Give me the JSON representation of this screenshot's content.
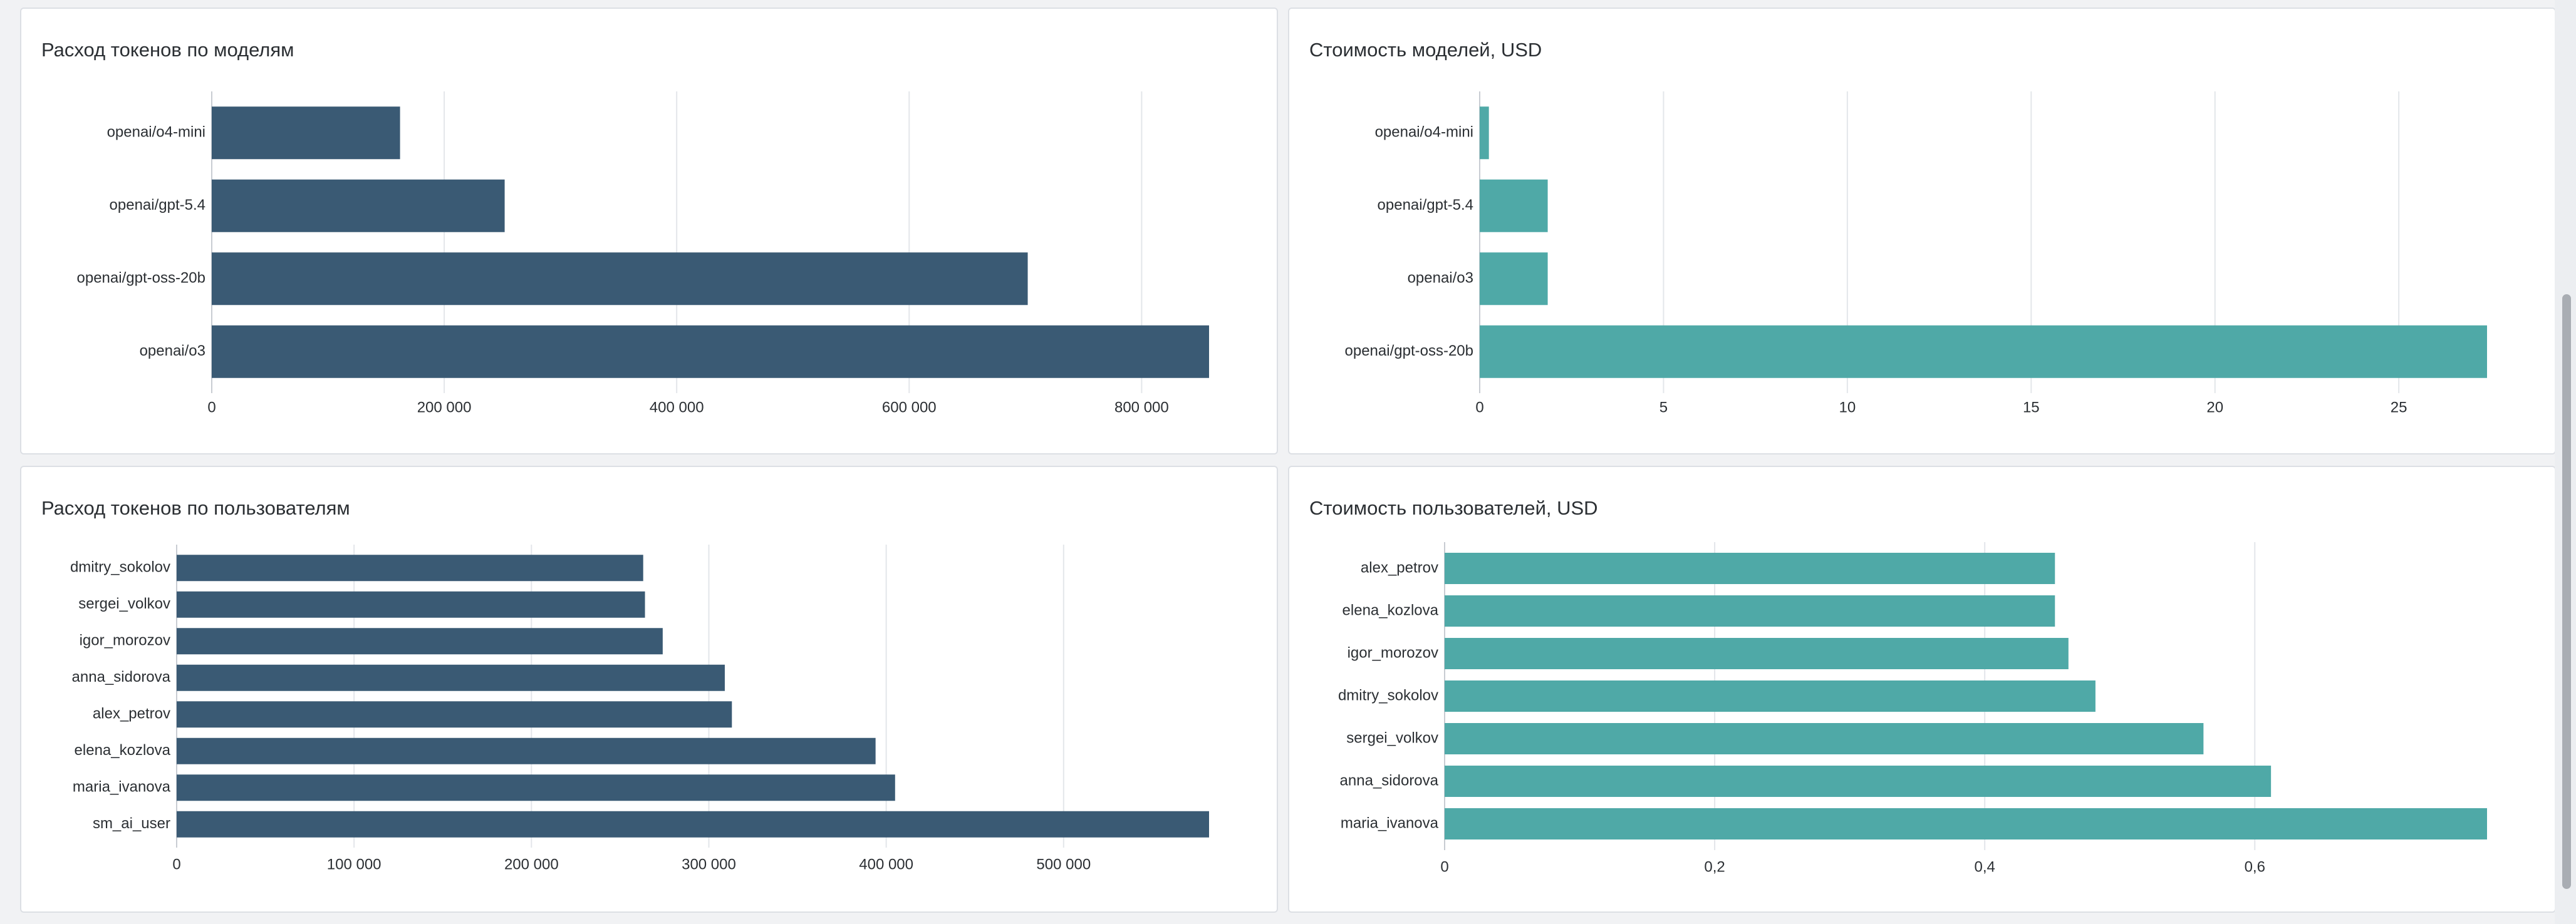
{
  "chart_data": [
    {
      "id": "tokens-by-model",
      "type": "bar",
      "orientation": "horizontal",
      "title": "Расход токенов по моделям",
      "categories": [
        "openai/o4-mini",
        "openai/gpt-5.4",
        "openai/gpt-oss-20b",
        "openai/o3"
      ],
      "values": [
        162000,
        252000,
        702000,
        858000
      ],
      "xlim": [
        0,
        858000
      ],
      "ticks": [
        0,
        200000,
        400000,
        600000,
        800000
      ],
      "tick_labels": [
        "0",
        "200 000",
        "400 000",
        "600 000",
        "800 000"
      ],
      "color": "#3a5a74",
      "grid": true
    },
    {
      "id": "cost-by-model",
      "type": "bar",
      "orientation": "horizontal",
      "title": "Стоимость моделей, USD",
      "categories": [
        "openai/o4-mini",
        "openai/gpt-5.4",
        "openai/o3",
        "openai/gpt-oss-20b"
      ],
      "values": [
        0.25,
        1.85,
        1.85,
        27.4
      ],
      "xlim": [
        0,
        27.4
      ],
      "ticks": [
        0,
        5,
        10,
        15,
        20,
        25
      ],
      "tick_labels": [
        "0",
        "5",
        "10",
        "15",
        "20",
        "25"
      ],
      "color": "#4fa9a7",
      "grid": true
    },
    {
      "id": "tokens-by-user",
      "type": "bar",
      "orientation": "horizontal",
      "title": "Расход токенов по пользователям",
      "categories": [
        "dmitry_sokolov",
        "sergei_volkov",
        "igor_morozov",
        "anna_sidorova",
        "alex_petrov",
        "elena_kozlova",
        "maria_ivanova",
        "sm_ai_user"
      ],
      "values": [
        263000,
        264000,
        274000,
        309000,
        313000,
        394000,
        405000,
        582000
      ],
      "xlim": [
        0,
        582000
      ],
      "ticks": [
        0,
        100000,
        200000,
        300000,
        400000,
        500000
      ],
      "tick_labels": [
        "0",
        "100 000",
        "200 000",
        "300 000",
        "400 000",
        "500 000"
      ],
      "color": "#3a5a74",
      "grid": true
    },
    {
      "id": "cost-by-user",
      "type": "bar",
      "orientation": "horizontal",
      "title": "Стоимость пользователей, USD",
      "categories": [
        "alex_petrov",
        "elena_kozlova",
        "igor_morozov",
        "dmitry_sokolov",
        "sergei_volkov",
        "anna_sidorova",
        "maria_ivanova"
      ],
      "values": [
        0.452,
        0.452,
        0.462,
        0.482,
        0.562,
        0.612,
        0.772
      ],
      "xlim": [
        0,
        0.772
      ],
      "ticks": [
        0,
        0.2,
        0.4,
        0.6
      ],
      "tick_labels": [
        "0",
        "0,2",
        "0,4",
        "0,6"
      ],
      "color": "#4fa9a7",
      "grid": true
    }
  ]
}
